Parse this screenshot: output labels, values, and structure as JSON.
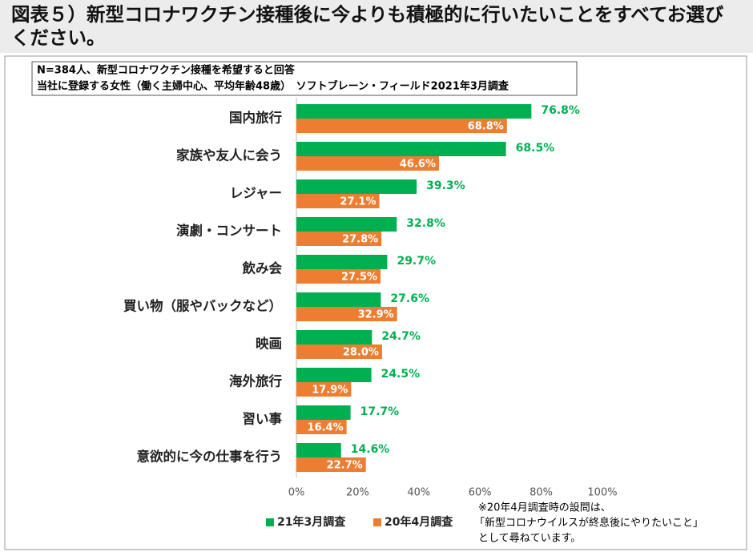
{
  "chart_data": {
    "type": "bar",
    "orientation": "horizontal",
    "title": "図表５）新型コロナワクチン接種後に今よりも積極的に行いたいことをすべてお選びください。",
    "notes": [
      "N=384人、新型コロナワクチン接種を希望すると回答",
      "当社に登録する女性（働く主婦中心、平均年齢48歳）　ソフトブレーン・フィールド2021年3月調査"
    ],
    "categories": [
      "国内旅行",
      "家族や友人に会う",
      "レジャー",
      "演劇・コンサート",
      "飲み会",
      "買い物（服やバックなど）",
      "映画",
      "海外旅行",
      "習い事",
      "意欲的に今の仕事を行う"
    ],
    "series": [
      {
        "name": "21年3月調査",
        "color": "#00b050",
        "values": [
          76.8,
          68.5,
          39.3,
          32.8,
          29.7,
          27.6,
          24.7,
          24.5,
          17.7,
          14.6
        ],
        "value_labels": [
          "76.8%",
          "68.5%",
          "39.3%",
          "32.8%",
          "29.7%",
          "27.6%",
          "24.7%",
          "24.5%",
          "17.7%",
          "14.6%"
        ]
      },
      {
        "name": "20年4月調査",
        "color": "#ed7d31",
        "values": [
          68.8,
          46.6,
          27.1,
          27.8,
          27.5,
          32.9,
          28.0,
          17.9,
          16.4,
          22.7
        ],
        "value_labels": [
          "68.8%",
          "46.6%",
          "27.1%",
          "27.8%",
          "27.5%",
          "32.9%",
          "28.0%",
          "17.9%",
          "16.4%",
          "22.7%"
        ]
      }
    ],
    "xlim": [
      0,
      100
    ],
    "xticks": [
      {
        "value": 0,
        "label": "0%"
      },
      {
        "value": 20,
        "label": "20%"
      },
      {
        "value": 40,
        "label": "40%"
      },
      {
        "value": 60,
        "label": "60%"
      },
      {
        "value": 80,
        "label": "80%"
      },
      {
        "value": 100,
        "label": "100%"
      }
    ],
    "footnote": [
      "※20年4月調査時の設問は、",
      "「新型コロナウイルスが終息後にやりたいこと」",
      "として尋ねています。"
    ],
    "grid": false
  }
}
